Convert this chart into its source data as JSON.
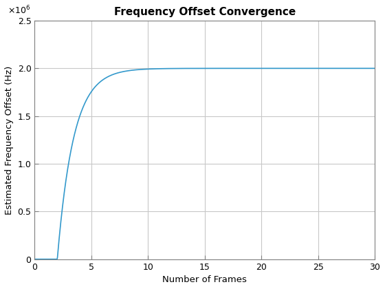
{
  "title": "Frequency Offset Convergence",
  "xlabel": "Number of Frames",
  "ylabel": "Estimated Frequency Offset (Hz)",
  "line_color": "#3399cc",
  "xlim": [
    0,
    30
  ],
  "ylim": [
    0,
    2500000.0
  ],
  "xticks": [
    0,
    5,
    10,
    15,
    20,
    25,
    30
  ],
  "yticks": [
    0,
    500000,
    1000000,
    1500000,
    2000000,
    2500000
  ],
  "ytick_labels": [
    "0",
    "0.5",
    "1",
    "1.5",
    "2",
    "2.5"
  ],
  "convergence_value": 2000000,
  "start_frame": 2.0,
  "k": 0.7,
  "total_frames": 30,
  "background_color": "#ffffff",
  "grid_color": "#c8c8c8",
  "title_fontsize": 11,
  "label_fontsize": 9.5,
  "tick_fontsize": 9
}
